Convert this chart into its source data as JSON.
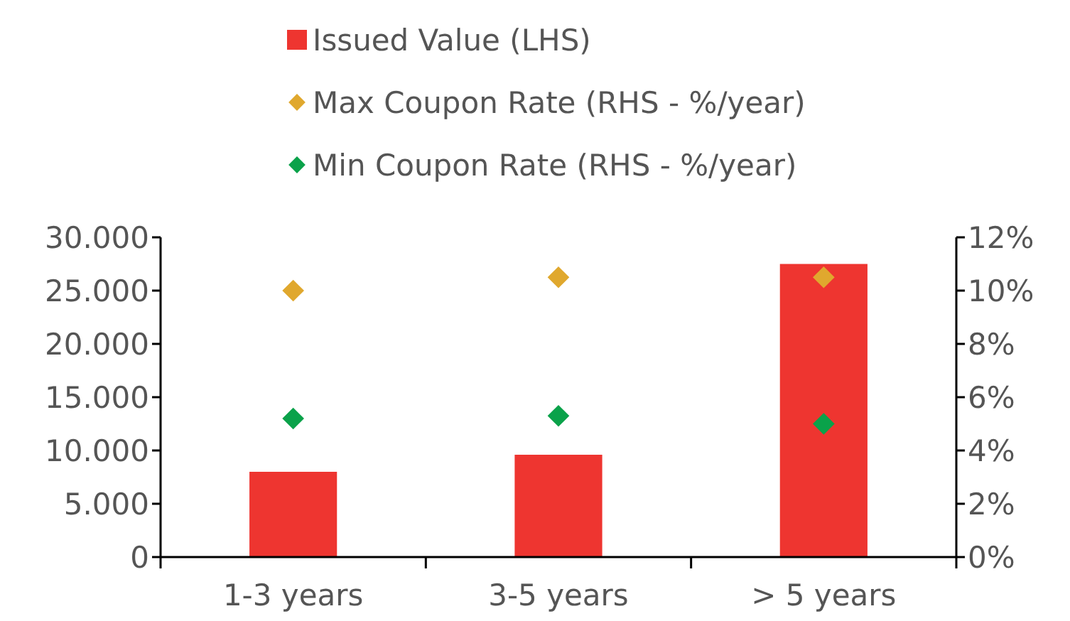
{
  "chart_data": {
    "type": "bar",
    "categories": [
      "1-3 years",
      "3-5 years",
      "> 5 years"
    ],
    "series": [
      {
        "name": "Issued Value (LHS)",
        "color": "#ee3530",
        "values": [
          8000,
          9600,
          27500
        ]
      },
      {
        "name": "Max Coupon Rate (RHS - %/year)",
        "type": "scatter",
        "axis": "y2",
        "color": "#e0a82e",
        "values": [
          10,
          10.5,
          10.5
        ]
      },
      {
        "name": "Min Coupon Rate (RHS - %/year)",
        "type": "scatter",
        "axis": "y2",
        "color": "#0aa24a",
        "values": [
          5.2,
          5.3,
          5.0
        ]
      }
    ],
    "ylim": [
      0,
      30000
    ],
    "yticks": [
      0,
      {
        "value": 5000,
        "label": "5.000"
      },
      {
        "value": 10000,
        "label": "10.000"
      },
      {
        "value": 15000,
        "label": "15.000"
      },
      {
        "value": 20000,
        "label": "20.000"
      },
      {
        "value": 25000,
        "label": "25.000"
      },
      {
        "value": 30000,
        "label": "30.000"
      }
    ],
    "y2lim": [
      0,
      12
    ],
    "y2ticks": [
      {
        "value": 0,
        "label": "0%"
      },
      {
        "value": 2,
        "label": "2%"
      },
      {
        "value": 4,
        "label": "4%"
      },
      {
        "value": 6,
        "label": "6%"
      },
      {
        "value": 8,
        "label": "8%"
      },
      {
        "value": 10,
        "label": "10%"
      },
      {
        "value": 12,
        "label": "12%"
      }
    ],
    "marker": "diamond",
    "legend": "top",
    "grid": false
  }
}
